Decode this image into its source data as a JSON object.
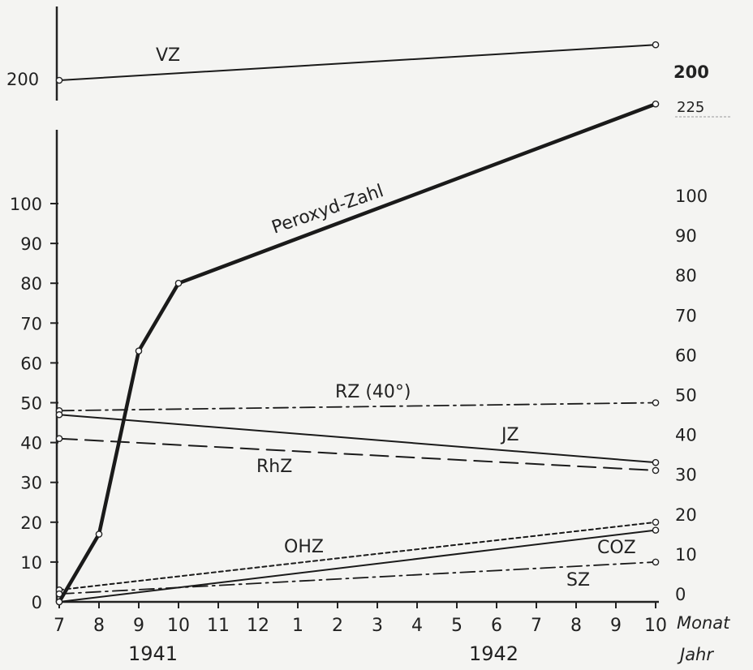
{
  "chart_data": {
    "type": "line",
    "x": [
      "7",
      "8",
      "9",
      "10",
      "11",
      "12",
      "1",
      "2",
      "3",
      "4",
      "5",
      "6",
      "7",
      "8",
      "9",
      "10"
    ],
    "x_axis_label": "Monat",
    "year_axis_label": "Jahr",
    "year_labels": [
      "1941",
      "1942"
    ],
    "ylim_lower": [
      0,
      100
    ],
    "yticks_left_lower": [
      "0",
      "10",
      "20",
      "30",
      "40",
      "50",
      "60",
      "70",
      "80",
      "90",
      "100"
    ],
    "yticks_right_lower": [
      "0",
      "10",
      "20",
      "30",
      "40",
      "50",
      "60",
      "70",
      "80",
      "90",
      "100"
    ],
    "upper_panel": {
      "left_tick": "200",
      "right_ticks": [
        "200",
        "225"
      ]
    },
    "series": [
      {
        "name": "VZ",
        "panel": "upper",
        "style": "solid",
        "x": [
          "7",
          "10"
        ],
        "values": [
          200,
          215
        ]
      },
      {
        "name": "Peroxyd-Zahl",
        "panel": "lower",
        "style": "bold",
        "x": [
          "7",
          "8",
          "9",
          "10",
          "10"
        ],
        "values": [
          0,
          17,
          63,
          80,
          125
        ]
      },
      {
        "name": "RZ (40°)",
        "panel": "lower",
        "style": "dash-dot",
        "x": [
          "7",
          "10"
        ],
        "values": [
          48,
          50
        ]
      },
      {
        "name": "JZ",
        "panel": "lower",
        "style": "solid",
        "x": [
          "7",
          "10"
        ],
        "values": [
          47,
          35
        ]
      },
      {
        "name": "RhZ",
        "panel": "lower",
        "style": "dashed",
        "x": [
          "7",
          "10"
        ],
        "values": [
          41,
          33
        ]
      },
      {
        "name": "OHZ",
        "panel": "lower",
        "style": "dotted",
        "x": [
          "7",
          "10"
        ],
        "values": [
          3,
          20
        ]
      },
      {
        "name": "COZ",
        "panel": "lower",
        "style": "solid",
        "x": [
          "7",
          "10"
        ],
        "values": [
          0,
          18
        ]
      },
      {
        "name": "SZ",
        "panel": "lower",
        "style": "dash-dot",
        "x": [
          "7",
          "10"
        ],
        "values": [
          2,
          10
        ]
      }
    ]
  }
}
